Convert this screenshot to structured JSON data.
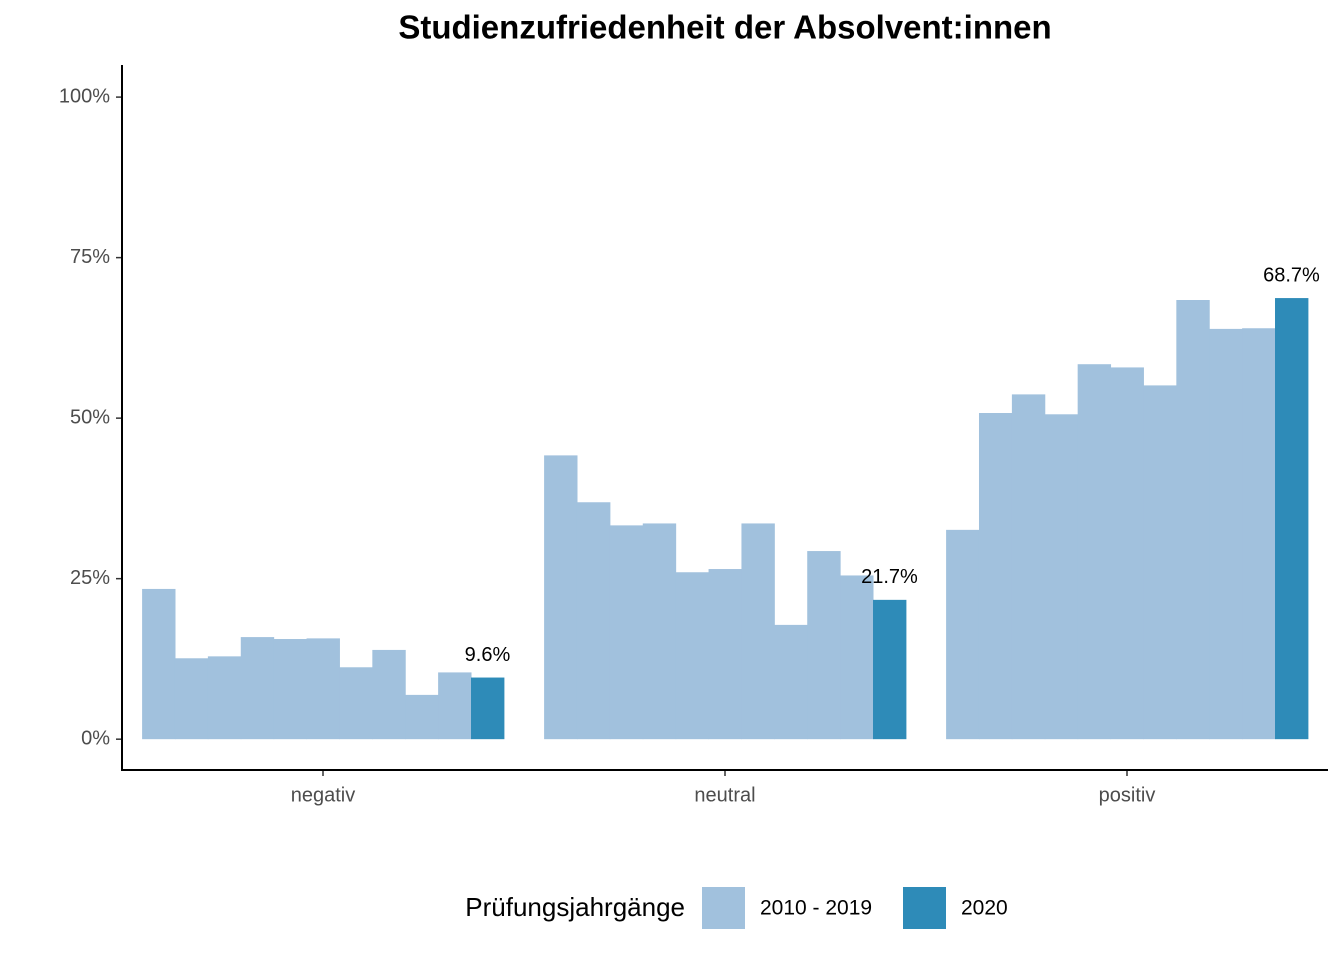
{
  "chart_data": {
    "type": "bar",
    "title": "Studienzufriedenheit der Absolvent:innen",
    "categories": [
      "negativ",
      "neutral",
      "positiv"
    ],
    "series": [
      {
        "name": "2010 - 2019",
        "color": "#a1c1dd",
        "values": [
          [
            23.4,
            12.6,
            12.9,
            15.9,
            15.6,
            15.7,
            11.2,
            13.9,
            6.9,
            10.4
          ],
          [
            44.2,
            36.9,
            33.3,
            33.6,
            26.0,
            26.5,
            33.6,
            17.8,
            29.3,
            25.5
          ],
          [
            32.6,
            50.8,
            53.7,
            50.6,
            58.4,
            57.9,
            55.1,
            68.4,
            63.9,
            64.0
          ]
        ]
      },
      {
        "name": "2020",
        "color": "#2e8bb8",
        "values": [
          9.6,
          21.7,
          68.7
        ],
        "value_labels": [
          "9.6%",
          "21.7%",
          "68.7%"
        ]
      }
    ],
    "legend_title": "Prüfungsjahrgänge",
    "ylim": [
      -4.8,
      105
    ],
    "yticks": [
      {
        "value": 0,
        "label": "0%"
      },
      {
        "value": 25,
        "label": "25%"
      },
      {
        "value": 50,
        "label": "50%"
      },
      {
        "value": 75,
        "label": "75%"
      },
      {
        "value": 100,
        "label": "100%"
      }
    ]
  }
}
